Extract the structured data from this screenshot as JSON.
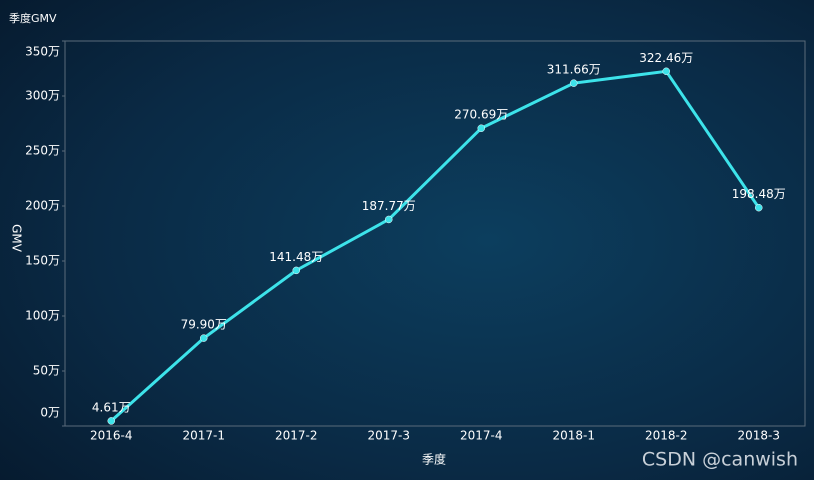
{
  "chart_data": {
    "type": "line",
    "title": "季度GMV",
    "x_label": "季度",
    "y_label": "GMV",
    "categories": [
      "2016-4",
      "2017-1",
      "2017-2",
      "2017-3",
      "2017-4",
      "2018-1",
      "2018-2",
      "2018-3"
    ],
    "series": [
      {
        "name": "GMV",
        "color": "#3de3ea",
        "values": [
          4.61,
          79.9,
          141.48,
          187.77,
          270.69,
          311.66,
          322.46,
          198.48
        ],
        "value_labels": [
          "4.61万",
          "79.90万",
          "141.48万",
          "187.77万",
          "270.69万",
          "311.66万",
          "322.46万",
          "198.48万"
        ]
      }
    ],
    "ylim": [
      0,
      350
    ],
    "yticks": [
      {
        "value": 0,
        "label": "0万"
      },
      {
        "value": 50,
        "label": "50万"
      },
      {
        "value": 100,
        "label": "100万"
      },
      {
        "value": 150,
        "label": "150万"
      },
      {
        "value": 200,
        "label": "200万"
      },
      {
        "value": 250,
        "label": "250万"
      },
      {
        "value": 300,
        "label": "300万"
      },
      {
        "value": 350,
        "label": "350万"
      }
    ],
    "grid": false,
    "watermark": "CSDN @canwish"
  }
}
